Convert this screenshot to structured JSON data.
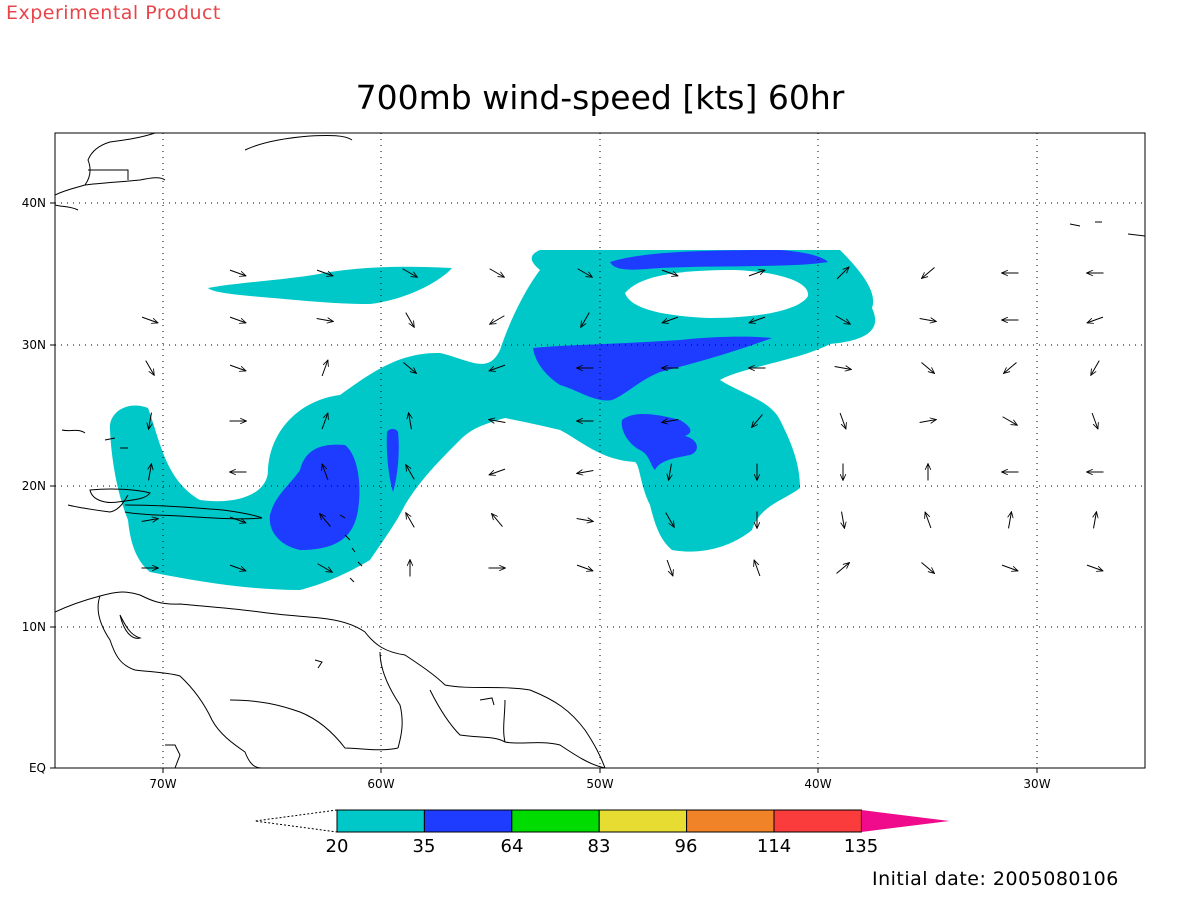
{
  "header": {
    "product_note": "Experimental Product"
  },
  "map": {
    "title": "700mb wind-speed [kts] 60hr",
    "x_ticks": [
      "70W",
      "60W",
      "50W",
      "40W",
      "30W"
    ],
    "y_ticks": [
      "40N",
      "30N",
      "20N",
      "10N",
      "EQ"
    ],
    "grid": "dotted"
  },
  "legend": {
    "levels": [
      "20",
      "35",
      "64",
      "83",
      "96",
      "114",
      "135"
    ],
    "colors": [
      "#00c8c8",
      "#1e3cff",
      "#00dc00",
      "#e6dc32",
      "#f08228",
      "#fa3c3c",
      "#f00a8c"
    ]
  },
  "footer": {
    "initial_date": "Initial date: 2005080106"
  }
}
